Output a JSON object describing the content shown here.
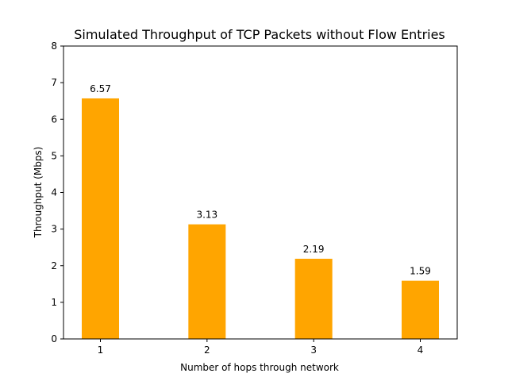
{
  "chart_data": {
    "type": "bar",
    "title": "Simulated Throughput of TCP Packets without Flow Entries",
    "xlabel": "Number of hops through network",
    "ylabel": "Throughput (Mbps)",
    "categories": [
      "1",
      "2",
      "3",
      "4"
    ],
    "values": [
      6.57,
      3.13,
      2.19,
      1.59
    ],
    "data_labels": [
      "6.57",
      "3.13",
      "2.19",
      "1.59"
    ],
    "ylim": [
      0,
      8
    ],
    "yticks": [
      0,
      1,
      2,
      3,
      4,
      5,
      6,
      7,
      8
    ],
    "bar_color": "#FFA500",
    "grid": false,
    "legend": "none"
  }
}
